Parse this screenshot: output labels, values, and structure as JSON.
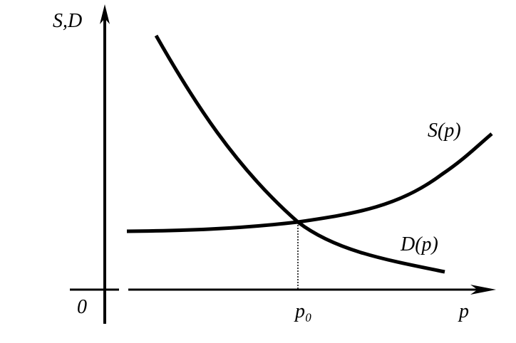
{
  "axes": {
    "y_label": "S,D",
    "x_label": "p",
    "origin": "0",
    "equilibrium": "p₀"
  },
  "curves": {
    "supply": "S(p)",
    "demand": "D(p)"
  }
}
